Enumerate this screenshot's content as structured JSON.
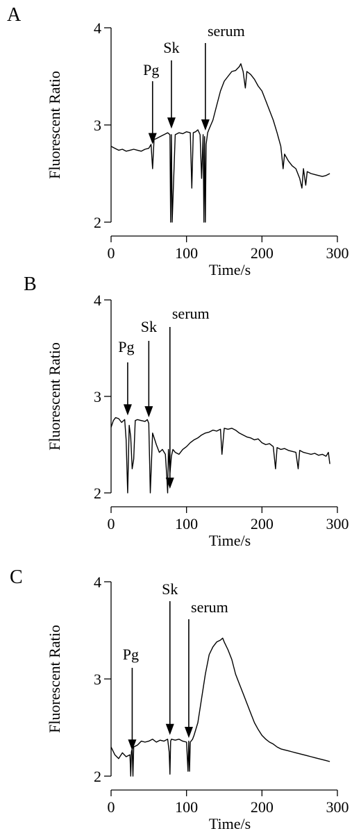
{
  "chart_data": [
    {
      "panel_label": "A",
      "type": "line",
      "xlabel": "Time/s",
      "ylabel": "Fluorescent Ratio",
      "xlim": [
        0,
        300
      ],
      "ylim": [
        2,
        4
      ],
      "xticks": [
        0,
        100,
        200,
        300
      ],
      "yticks": [
        2,
        3,
        4
      ],
      "annotations": [
        {
          "text": "Pg",
          "x": 55
        },
        {
          "text": "Sk",
          "x": 80
        },
        {
          "text": "serum",
          "x": 125
        }
      ],
      "series": [
        {
          "x": [
            0,
            5,
            10,
            15,
            20,
            25,
            30,
            35,
            40,
            45,
            50,
            53,
            55,
            57,
            60,
            65,
            70,
            75,
            78,
            79,
            80,
            81,
            85,
            90,
            95,
            100,
            105,
            107,
            109,
            112,
            115,
            118,
            120,
            122,
            123,
            124,
            125,
            126,
            128,
            130,
            135,
            140,
            145,
            150,
            155,
            160,
            165,
            170,
            172,
            175,
            178,
            180,
            185,
            190,
            195,
            200,
            205,
            210,
            215,
            220,
            225,
            228,
            230,
            235,
            240,
            245,
            250,
            253,
            255,
            258,
            260,
            265,
            270,
            275,
            280,
            285,
            290
          ],
          "y": [
            2.78,
            2.76,
            2.74,
            2.75,
            2.73,
            2.74,
            2.75,
            2.74,
            2.73,
            2.75,
            2.76,
            2.8,
            2.55,
            2.85,
            2.86,
            2.88,
            2.9,
            2.92,
            2.9,
            2.0,
            2.9,
            2.0,
            2.9,
            2.92,
            2.91,
            2.93,
            2.92,
            2.35,
            2.92,
            2.93,
            2.95,
            2.9,
            2.45,
            2.9,
            2.0,
            2.88,
            2.0,
            2.8,
            2.92,
            2.96,
            3.05,
            3.2,
            3.35,
            3.45,
            3.5,
            3.55,
            3.56,
            3.6,
            3.63,
            3.55,
            3.38,
            3.55,
            3.52,
            3.47,
            3.4,
            3.35,
            3.25,
            3.15,
            3.05,
            2.92,
            2.78,
            2.55,
            2.7,
            2.63,
            2.58,
            2.55,
            2.45,
            2.35,
            2.55,
            2.38,
            2.52,
            2.5,
            2.49,
            2.48,
            2.47,
            2.48,
            2.5
          ]
        }
      ]
    },
    {
      "panel_label": "B",
      "type": "line",
      "xlabel": "Time/s",
      "ylabel": "Fluorescent Ratio",
      "xlim": [
        0,
        300
      ],
      "ylim": [
        2,
        4
      ],
      "xticks": [
        0,
        100,
        200,
        300
      ],
      "yticks": [
        2,
        3,
        4
      ],
      "annotations": [
        {
          "text": "Pg",
          "x": 22
        },
        {
          "text": "Sk",
          "x": 50
        },
        {
          "text": "serum",
          "x": 78
        }
      ],
      "series": [
        {
          "x": [
            0,
            3,
            6,
            10,
            14,
            18,
            20,
            22,
            24,
            26,
            28,
            30,
            32,
            35,
            40,
            45,
            48,
            50,
            52,
            55,
            58,
            60,
            64,
            68,
            72,
            74,
            75,
            76,
            78,
            80,
            82,
            85,
            90,
            95,
            100,
            105,
            110,
            115,
            120,
            125,
            130,
            135,
            140,
            145,
            147,
            150,
            155,
            160,
            165,
            170,
            175,
            180,
            185,
            190,
            195,
            200,
            205,
            210,
            215,
            218,
            220,
            225,
            230,
            235,
            240,
            245,
            248,
            250,
            255,
            260,
            265,
            270,
            275,
            280,
            285,
            288,
            290
          ],
          "y": [
            2.68,
            2.75,
            2.78,
            2.77,
            2.73,
            2.76,
            2.55,
            2.0,
            2.7,
            2.58,
            2.25,
            2.35,
            2.75,
            2.76,
            2.75,
            2.74,
            2.76,
            2.72,
            2.0,
            2.62,
            2.55,
            2.5,
            2.42,
            2.45,
            2.4,
            2.15,
            2.0,
            2.45,
            2.2,
            2.38,
            2.45,
            2.42,
            2.4,
            2.45,
            2.48,
            2.52,
            2.55,
            2.57,
            2.6,
            2.62,
            2.63,
            2.65,
            2.64,
            2.66,
            2.4,
            2.67,
            2.66,
            2.67,
            2.65,
            2.62,
            2.6,
            2.58,
            2.57,
            2.55,
            2.56,
            2.52,
            2.5,
            2.51,
            2.48,
            2.25,
            2.47,
            2.45,
            2.46,
            2.44,
            2.43,
            2.42,
            2.25,
            2.44,
            2.42,
            2.41,
            2.4,
            2.41,
            2.39,
            2.4,
            2.38,
            2.42,
            2.3
          ]
        }
      ]
    },
    {
      "panel_label": "C",
      "type": "line",
      "xlabel": "Time/s",
      "ylabel": "Fluorescent Ratio",
      "xlim": [
        0,
        300
      ],
      "ylim": [
        2,
        4
      ],
      "xticks": [
        0,
        100,
        200,
        300
      ],
      "yticks": [
        2,
        3,
        4
      ],
      "annotations": [
        {
          "text": "Pg",
          "x": 28
        },
        {
          "text": "Sk",
          "x": 78
        },
        {
          "text": "serum",
          "x": 103
        }
      ],
      "series": [
        {
          "x": [
            0,
            5,
            10,
            15,
            20,
            25,
            26,
            27,
            28,
            29,
            30,
            35,
            40,
            45,
            50,
            55,
            60,
            65,
            70,
            75,
            77,
            78,
            79,
            80,
            85,
            90,
            95,
            100,
            102,
            103,
            104,
            105,
            108,
            110,
            115,
            120,
            125,
            130,
            135,
            140,
            145,
            148,
            150,
            155,
            160,
            165,
            170,
            175,
            180,
            185,
            190,
            195,
            200,
            205,
            210,
            215,
            220,
            225,
            230,
            235,
            240,
            245,
            250,
            255,
            260,
            265,
            270,
            275,
            280,
            285,
            290
          ],
          "y": [
            2.3,
            2.22,
            2.18,
            2.24,
            2.2,
            2.22,
            2.0,
            2.25,
            2.28,
            2.0,
            2.3,
            2.32,
            2.36,
            2.35,
            2.36,
            2.38,
            2.35,
            2.37,
            2.36,
            2.38,
            2.25,
            2.02,
            2.36,
            2.38,
            2.37,
            2.38,
            2.36,
            2.35,
            2.05,
            2.36,
            2.05,
            2.35,
            2.38,
            2.42,
            2.55,
            2.8,
            3.05,
            3.25,
            3.33,
            3.38,
            3.4,
            3.42,
            3.38,
            3.3,
            3.2,
            3.05,
            2.95,
            2.85,
            2.75,
            2.65,
            2.55,
            2.48,
            2.42,
            2.38,
            2.35,
            2.33,
            2.3,
            2.28,
            2.27,
            2.26,
            2.25,
            2.24,
            2.23,
            2.22,
            2.21,
            2.2,
            2.19,
            2.18,
            2.17,
            2.16,
            2.15
          ]
        }
      ]
    }
  ]
}
